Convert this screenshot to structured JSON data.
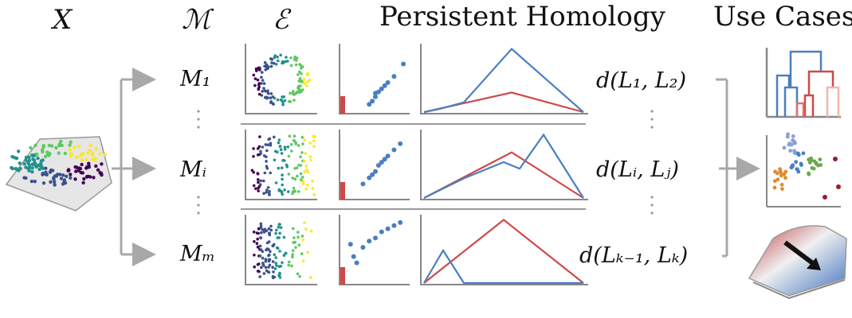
{
  "headers": {
    "x": "X",
    "m": "ℳ",
    "e": "ℰ",
    "ph": "Persistent Homology",
    "uc": "Use Cases"
  },
  "rows": [
    {
      "model": "M₁",
      "distance": "d(L₁, L₂)",
      "persistence_points": [
        [
          0.45,
          0.15
        ],
        [
          0.5,
          0.22
        ],
        [
          0.55,
          0.3
        ],
        [
          0.6,
          0.35
        ],
        [
          0.7,
          0.45
        ],
        [
          0.8,
          0.55
        ],
        [
          0.95,
          0.75
        ],
        [
          0.4,
          0.1
        ],
        [
          0.65,
          0.4
        ],
        [
          0.5,
          0.28
        ]
      ],
      "landscape_blue": [
        [
          0,
          0
        ],
        [
          0.1,
          0.05
        ],
        [
          0.25,
          0.15
        ],
        [
          0.55,
          0.97
        ],
        [
          1,
          0
        ]
      ],
      "landscape_red": [
        [
          0,
          0
        ],
        [
          0.55,
          0.3
        ],
        [
          1,
          0
        ]
      ]
    },
    {
      "model": "Mᵢ",
      "distance": "d(Lᵢ, Lⱼ)",
      "persistence_points": [
        [
          0.3,
          0.2
        ],
        [
          0.4,
          0.3
        ],
        [
          0.5,
          0.4
        ],
        [
          0.6,
          0.55
        ],
        [
          0.7,
          0.65
        ],
        [
          0.8,
          0.75
        ],
        [
          0.9,
          0.85
        ],
        [
          0.45,
          0.35
        ],
        [
          0.55,
          0.5
        ],
        [
          0.65,
          0.6
        ]
      ],
      "landscape_blue": [
        [
          0,
          0
        ],
        [
          0.25,
          0.3
        ],
        [
          0.5,
          0.55
        ],
        [
          0.6,
          0.45
        ],
        [
          0.75,
          0.97
        ],
        [
          1,
          0
        ]
      ],
      "landscape_red": [
        [
          0,
          0
        ],
        [
          0.55,
          0.7
        ],
        [
          1,
          0
        ]
      ]
    },
    {
      "model": "Mₘ",
      "distance": "d(Lₖ₋₁, Lₖ)",
      "persistence_points": [
        [
          0.1,
          0.6
        ],
        [
          0.15,
          0.4
        ],
        [
          0.2,
          0.3
        ],
        [
          0.3,
          0.55
        ],
        [
          0.4,
          0.65
        ],
        [
          0.5,
          0.7
        ],
        [
          0.6,
          0.8
        ],
        [
          0.7,
          0.85
        ],
        [
          0.8,
          0.9
        ],
        [
          0.9,
          0.95
        ]
      ],
      "landscape_blue": [
        [
          0,
          0
        ],
        [
          0.12,
          0.5
        ],
        [
          0.25,
          0
        ],
        [
          1,
          0
        ]
      ],
      "landscape_red": [
        [
          0,
          0
        ],
        [
          0.5,
          0.97
        ],
        [
          1,
          0
        ]
      ]
    }
  ],
  "colors": {
    "blue": "#4a7fc1",
    "red": "#d04848",
    "axis": "#888888",
    "arrow": "#a8a8a8"
  }
}
